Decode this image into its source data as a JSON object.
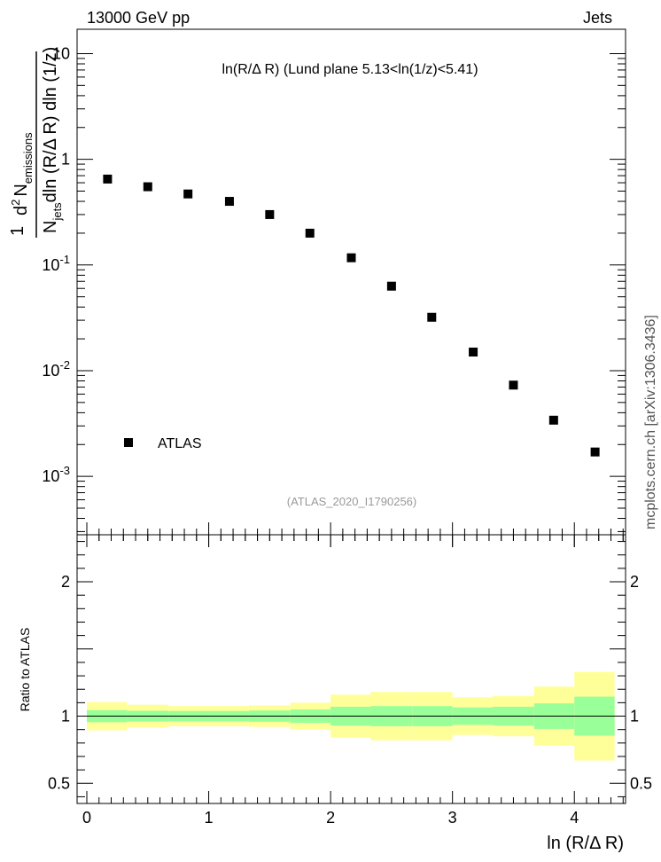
{
  "header": {
    "left": "13000 GeV pp",
    "right": "Jets"
  },
  "side_label": "mcplots.cern.ch [arXiv:1306.3436]",
  "chart_data": [
    {
      "type": "scatter",
      "title": "ln(R/Δ R) (Lund plane 5.13<ln(1/z)<5.41)",
      "ylabel_parts": {
        "prefix": "1",
        "numerator_d": "d",
        "numerator_exp": "2",
        "numerator_N": "N",
        "numerator_sub": "emissions",
        "denom_N": "N",
        "denom_sub": "jets",
        "denom_rest": "dln (R/Δ R) dln (1/z)"
      },
      "y_scale": "log",
      "ylim": [
        0.00028,
        17
      ],
      "y_tick_labels": [
        {
          "base": "10",
          "exp": "-3",
          "value": 0.001
        },
        {
          "base": "10",
          "exp": "-2",
          "value": 0.01
        },
        {
          "base": "10",
          "exp": "-1",
          "value": 0.1
        },
        {
          "base": "1",
          "exp": "",
          "value": 1
        },
        {
          "base": "10",
          "exp": "",
          "value": 10
        }
      ],
      "series": [
        {
          "name": "ATLAS",
          "x": [
            0.17,
            0.5,
            0.83,
            1.17,
            1.5,
            1.83,
            2.17,
            2.5,
            2.83,
            3.17,
            3.5,
            3.83,
            4.17
          ],
          "y": [
            0.65,
            0.55,
            0.47,
            0.4,
            0.3,
            0.2,
            0.117,
            0.063,
            0.032,
            0.015,
            0.0073,
            0.0034,
            0.0017
          ]
        }
      ],
      "watermark": "(ATLAS_2020_I1790256)"
    },
    {
      "type": "area",
      "ylabel": "Ratio to ATLAS",
      "xlabel": "ln (R/Δ R)",
      "xlim": [
        -0.08,
        4.42
      ],
      "ylim": [
        0.35,
        2.35
      ],
      "x_ticks": [
        "0",
        "1",
        "2",
        "3",
        "4"
      ],
      "y_ticks": [
        "0.5",
        "1",
        "2"
      ],
      "reference_line": 1,
      "band_colors": {
        "stat": "#99ff99",
        "total": "#ffff99"
      },
      "bins": [
        {
          "x": [
            0.0,
            0.33
          ],
          "inner": [
            0.955,
            1.045
          ],
          "outer": [
            0.895,
            1.105
          ]
        },
        {
          "x": [
            0.33,
            0.67
          ],
          "inner": [
            0.96,
            1.04
          ],
          "outer": [
            0.915,
            1.085
          ]
        },
        {
          "x": [
            0.67,
            1.0
          ],
          "inner": [
            0.962,
            1.038
          ],
          "outer": [
            0.925,
            1.075
          ]
        },
        {
          "x": [
            1.0,
            1.33
          ],
          "inner": [
            0.962,
            1.038
          ],
          "outer": [
            0.925,
            1.075
          ]
        },
        {
          "x": [
            1.33,
            1.67
          ],
          "inner": [
            0.958,
            1.042
          ],
          "outer": [
            0.92,
            1.08
          ]
        },
        {
          "x": [
            1.67,
            2.0
          ],
          "inner": [
            0.95,
            1.05
          ],
          "outer": [
            0.9,
            1.1
          ]
        },
        {
          "x": [
            2.0,
            2.33
          ],
          "inner": [
            0.93,
            1.07
          ],
          "outer": [
            0.84,
            1.16
          ]
        },
        {
          "x": [
            2.33,
            2.67
          ],
          "inner": [
            0.925,
            1.075
          ],
          "outer": [
            0.82,
            1.18
          ]
        },
        {
          "x": [
            2.67,
            3.0
          ],
          "inner": [
            0.925,
            1.075
          ],
          "outer": [
            0.82,
            1.18
          ]
        },
        {
          "x": [
            3.0,
            3.33
          ],
          "inner": [
            0.935,
            1.065
          ],
          "outer": [
            0.86,
            1.14
          ]
        },
        {
          "x": [
            3.33,
            3.67
          ],
          "inner": [
            0.93,
            1.07
          ],
          "outer": [
            0.85,
            1.15
          ]
        },
        {
          "x": [
            3.67,
            4.0
          ],
          "inner": [
            0.905,
            1.095
          ],
          "outer": [
            0.78,
            1.22
          ]
        },
        {
          "x": [
            4.0,
            4.33
          ],
          "inner": [
            0.855,
            1.145
          ],
          "outer": [
            0.67,
            1.33
          ]
        }
      ]
    }
  ]
}
